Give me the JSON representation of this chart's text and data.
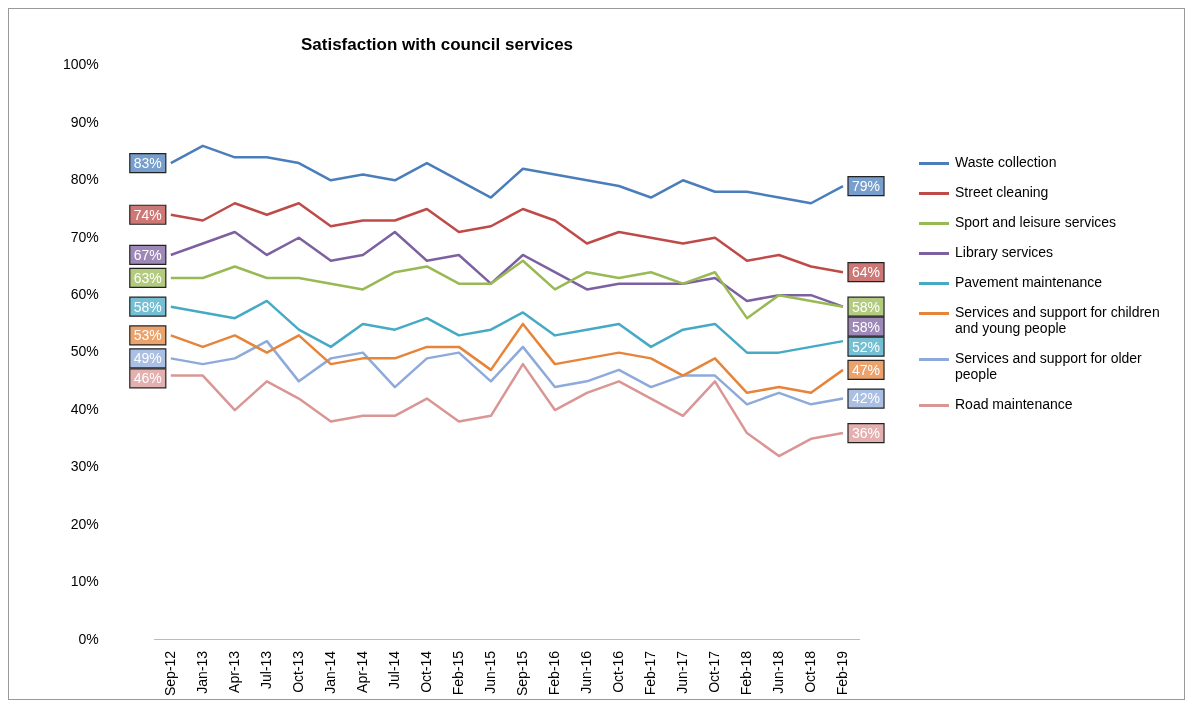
{
  "chart_data": {
    "type": "line",
    "title": "Satisfaction with council services",
    "categories": [
      "Sep-12",
      "Jan-13",
      "Apr-13",
      "Jul-13",
      "Oct-13",
      "Jan-14",
      "Apr-14",
      "Jul-14",
      "Oct-14",
      "Feb-15",
      "Jun-15",
      "Sep-15",
      "Feb-16",
      "Jun-16",
      "Oct-16",
      "Feb-17",
      "Jun-17",
      "Oct-17",
      "Feb-18",
      "Jun-18",
      "Oct-18",
      "Feb-19"
    ],
    "series": [
      {
        "name": "Waste collection",
        "color": "#4a7ebb",
        "values": [
          83,
          86,
          84,
          84,
          83,
          80,
          81,
          80,
          83,
          80,
          77,
          82,
          81,
          80,
          79,
          77,
          80,
          78,
          78,
          77,
          76,
          79
        ],
        "value_labels": [
          "83%",
          null,
          null,
          null,
          null,
          null,
          null,
          null,
          null,
          null,
          null,
          null,
          null,
          null,
          null,
          null,
          null,
          null,
          null,
          null,
          null,
          "79%"
        ]
      },
      {
        "name": "Street cleaning",
        "color": "#be4b48",
        "values": [
          74,
          73,
          76,
          74,
          76,
          72,
          73,
          73,
          75,
          71,
          72,
          75,
          73,
          69,
          71,
          70,
          69,
          70,
          66,
          67,
          65,
          64
        ],
        "value_labels": [
          "74%",
          null,
          null,
          null,
          null,
          null,
          null,
          null,
          null,
          null,
          null,
          null,
          null,
          null,
          null,
          null,
          null,
          null,
          null,
          null,
          null,
          "64%"
        ]
      },
      {
        "name": "Sport and leisure services",
        "color": "#98b954",
        "values": [
          63,
          63,
          65,
          63,
          63,
          62,
          61,
          64,
          65,
          62,
          62,
          66,
          61,
          64,
          63,
          64,
          62,
          64,
          56,
          60,
          59,
          58
        ],
        "value_labels": [
          "63%",
          null,
          null,
          null,
          null,
          null,
          null,
          null,
          null,
          null,
          null,
          null,
          null,
          null,
          null,
          null,
          null,
          null,
          null,
          null,
          null,
          "58%"
        ]
      },
      {
        "name": "Library services",
        "color": "#7d60a0",
        "values": [
          67,
          69,
          71,
          67,
          70,
          66,
          67,
          71,
          66,
          67,
          62,
          67,
          64,
          61,
          62,
          62,
          62,
          63,
          59,
          60,
          60,
          58
        ],
        "value_labels": [
          "67%",
          null,
          null,
          null,
          null,
          null,
          null,
          null,
          null,
          null,
          null,
          null,
          null,
          null,
          null,
          null,
          null,
          null,
          null,
          null,
          null,
          "58%"
        ]
      },
      {
        "name": "Pavement maintenance",
        "color": "#46aac5",
        "values": [
          58,
          57,
          56,
          59,
          54,
          51,
          55,
          54,
          56,
          53,
          54,
          57,
          53,
          54,
          55,
          51,
          54,
          55,
          50,
          50,
          51,
          52
        ],
        "value_labels": [
          "58%",
          null,
          null,
          null,
          null,
          null,
          null,
          null,
          null,
          null,
          null,
          null,
          null,
          null,
          null,
          null,
          null,
          null,
          null,
          null,
          null,
          "52%"
        ]
      },
      {
        "name": "Services and support for children and young people",
        "color": "#e6843a",
        "values": [
          53,
          51,
          53,
          50,
          53,
          48,
          49,
          49,
          51,
          51,
          47,
          55,
          48,
          49,
          50,
          49,
          46,
          49,
          43,
          44,
          43,
          47
        ],
        "value_labels": [
          "53%",
          null,
          null,
          null,
          null,
          null,
          null,
          null,
          null,
          null,
          null,
          null,
          null,
          null,
          null,
          null,
          null,
          null,
          null,
          null,
          null,
          "47%"
        ]
      },
      {
        "name": "Services and support for older people",
        "color": "#8eaadb",
        "values": [
          49,
          48,
          49,
          52,
          45,
          49,
          50,
          44,
          49,
          50,
          45,
          51,
          44,
          45,
          47,
          44,
          46,
          46,
          41,
          43,
          41,
          42
        ],
        "value_labels": [
          "49%",
          null,
          null,
          null,
          null,
          null,
          null,
          null,
          null,
          null,
          null,
          null,
          null,
          null,
          null,
          null,
          null,
          null,
          null,
          null,
          null,
          "42%"
        ]
      },
      {
        "name": "Road maintenance",
        "color": "#d99694",
        "values": [
          46,
          46,
          40,
          45,
          42,
          38,
          39,
          39,
          42,
          38,
          39,
          48,
          40,
          43,
          45,
          42,
          39,
          45,
          36,
          32,
          35,
          36
        ],
        "value_labels": [
          "46%",
          null,
          null,
          null,
          null,
          null,
          null,
          null,
          null,
          null,
          null,
          null,
          null,
          null,
          null,
          null,
          null,
          null,
          null,
          null,
          null,
          "36%"
        ]
      }
    ],
    "ylim": [
      0,
      100
    ],
    "yticks": [
      {
        "value": 0,
        "label": "0%"
      },
      {
        "value": 10,
        "label": "10%"
      },
      {
        "value": 20,
        "label": "20%"
      },
      {
        "value": 30,
        "label": "30%"
      },
      {
        "value": 40,
        "label": "40%"
      },
      {
        "value": 50,
        "label": "50%"
      },
      {
        "value": 60,
        "label": "60%"
      },
      {
        "value": 70,
        "label": "70%"
      },
      {
        "value": 80,
        "label": "80%"
      },
      {
        "value": 90,
        "label": "90%"
      },
      {
        "value": 100,
        "label": "100%"
      }
    ],
    "grid": false,
    "legend": "right",
    "marker": "none",
    "line_style": "solid"
  }
}
